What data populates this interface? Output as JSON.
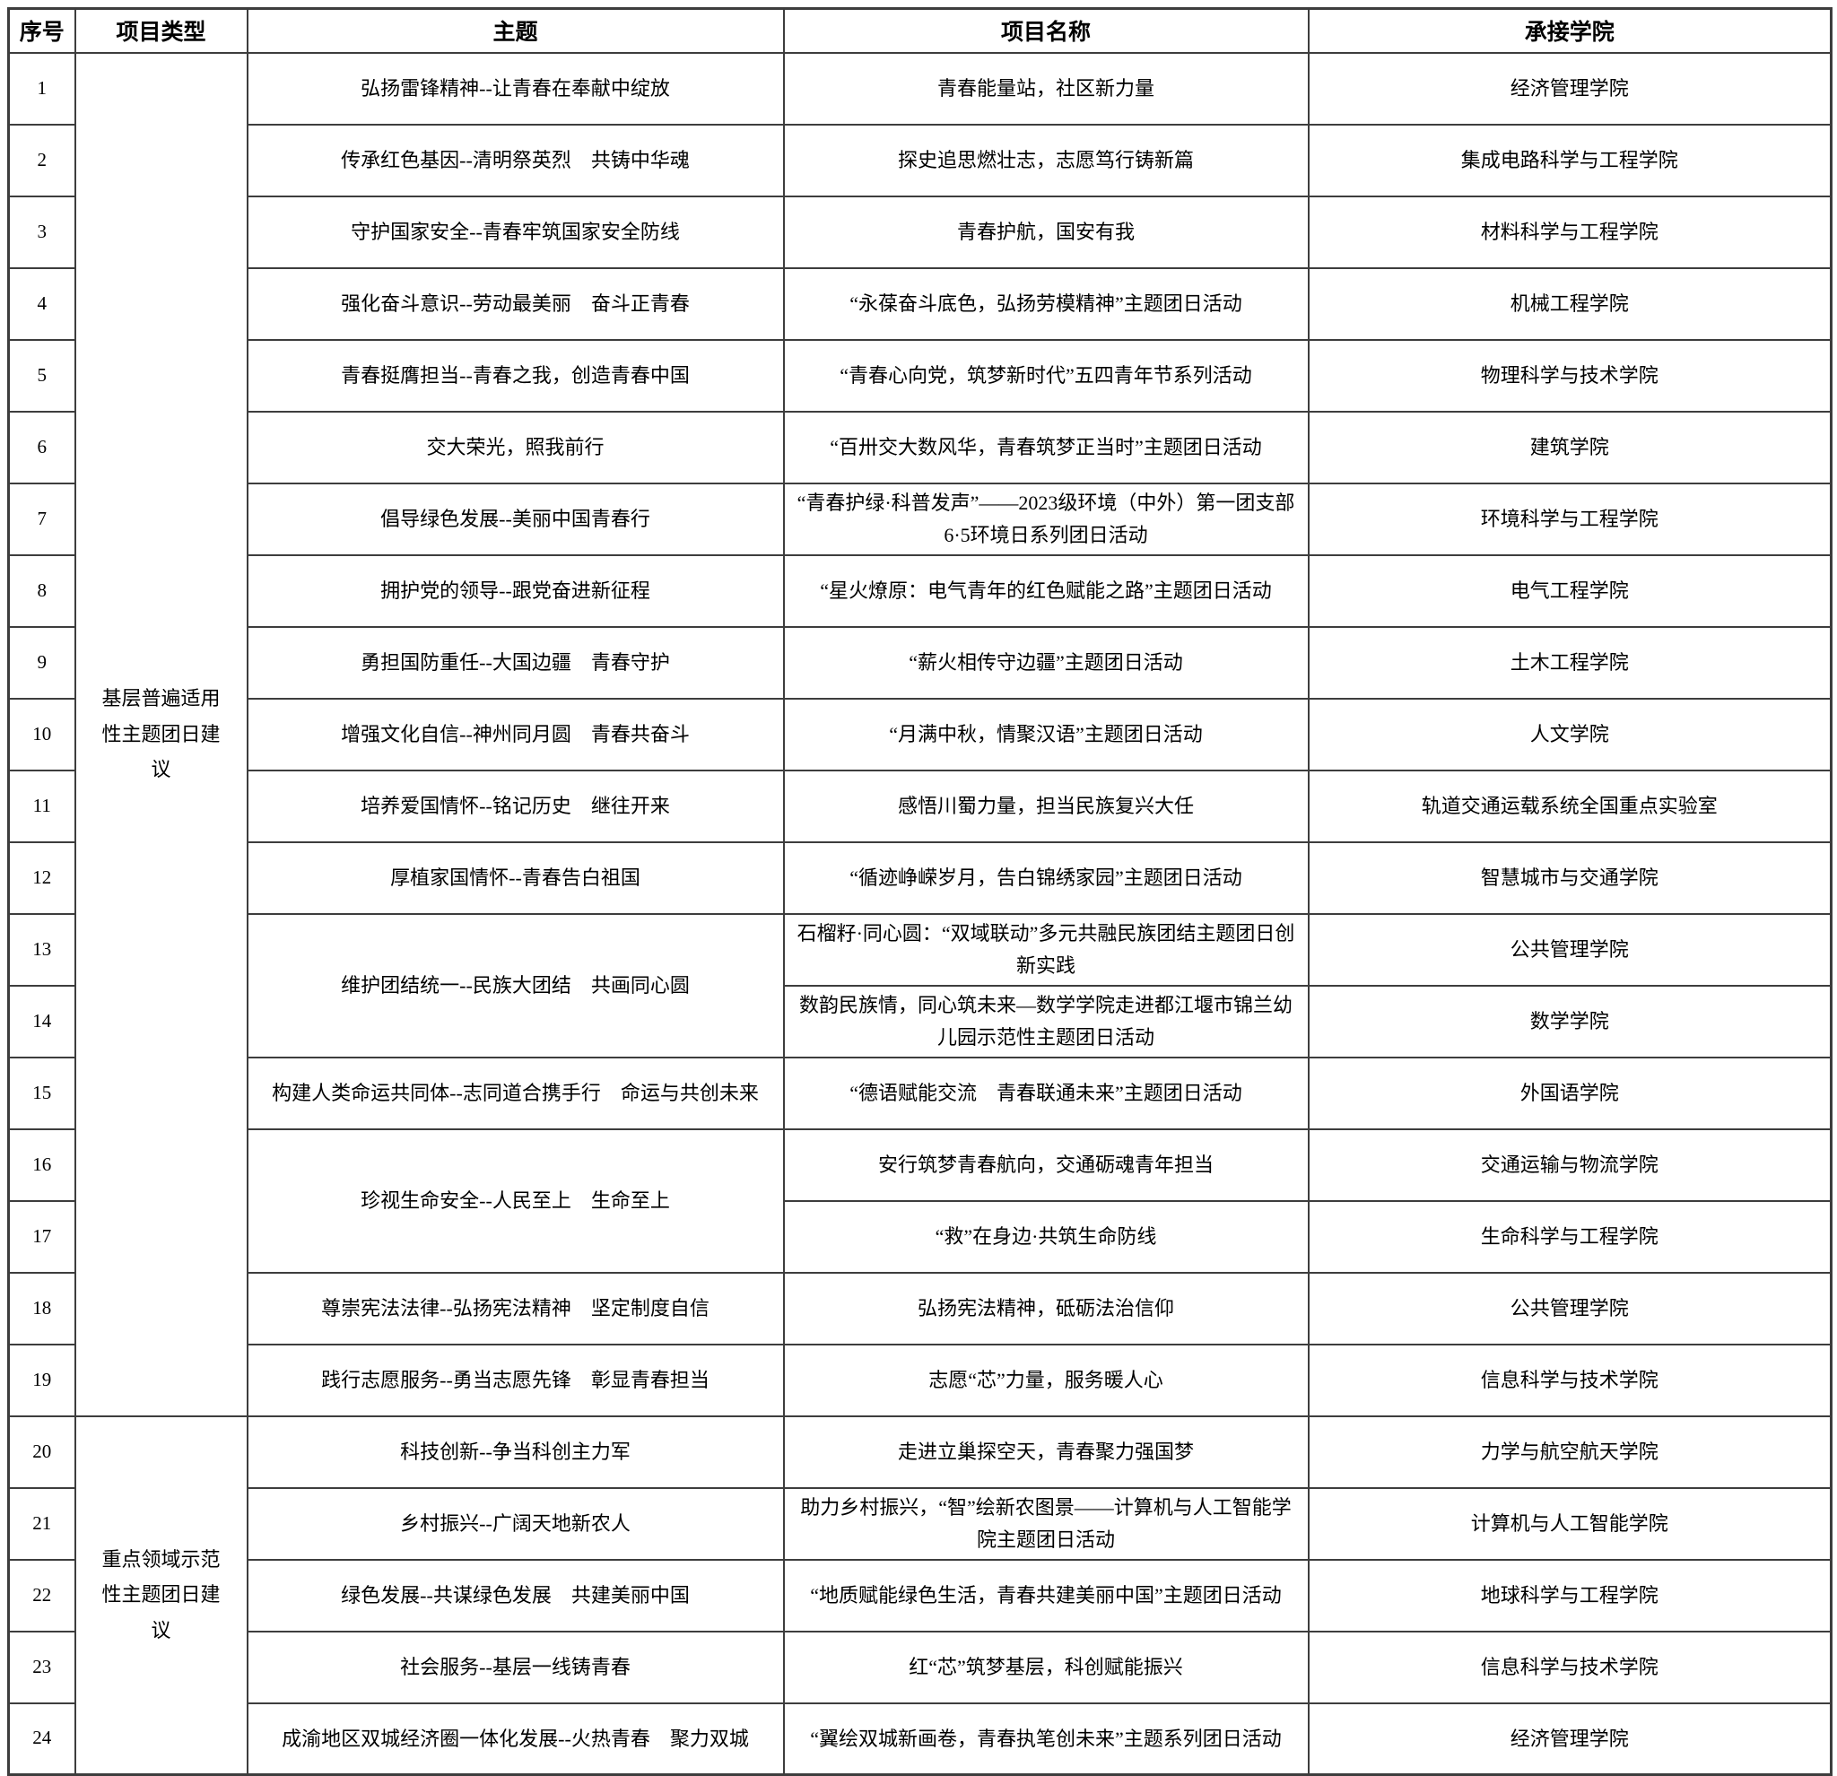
{
  "table": {
    "columns": [
      "序号",
      "项目类型",
      "主题",
      "项目名称",
      "承接学院"
    ],
    "groups": [
      {
        "project_type": "基层普遍适用性主题团日建议",
        "rows": [
          {
            "no": "1",
            "theme": "弘扬雷锋精神--让青春在奉献中绽放",
            "name": "青春能量站，社区新力量",
            "college": "经济管理学院"
          },
          {
            "no": "2",
            "theme": "传承红色基因--清明祭英烈　共铸中华魂",
            "name": "探史追思燃壮志，志愿笃行铸新篇",
            "college": "集成电路科学与工程学院"
          },
          {
            "no": "3",
            "theme": "守护国家安全--青春牢筑国家安全防线",
            "name": "青春护航，国安有我",
            "college": "材料科学与工程学院"
          },
          {
            "no": "4",
            "theme": "强化奋斗意识--劳动最美丽　奋斗正青春",
            "name": "“永葆奋斗底色，弘扬劳模精神”主题团日活动",
            "college": "机械工程学院"
          },
          {
            "no": "5",
            "theme": "青春挺膺担当--青春之我，创造青春中国",
            "name": "“青春心向党，筑梦新时代”五四青年节系列活动",
            "college": "物理科学与技术学院"
          },
          {
            "no": "6",
            "theme": "交大荣光，照我前行",
            "name": "“百卅交大数风华，青春筑梦正当时”主题团日活动",
            "college": "建筑学院"
          },
          {
            "no": "7",
            "theme": "倡导绿色发展--美丽中国青春行",
            "name": "“青春护绿·科普发声”——2023级环境（中外）第一团支部6·5环境日系列团日活动",
            "college": "环境科学与工程学院"
          },
          {
            "no": "8",
            "theme": "拥护党的领导--跟党奋进新征程",
            "name": "“星火燎原：电气青年的红色赋能之路”主题团日活动",
            "college": "电气工程学院"
          },
          {
            "no": "9",
            "theme": "勇担国防重任--大国边疆　青春守护",
            "name": "“薪火相传守边疆”主题团日活动",
            "college": "土木工程学院"
          },
          {
            "no": "10",
            "theme": "增强文化自信--神州同月圆　青春共奋斗",
            "name": "“月满中秋，情聚汉语”主题团日活动",
            "college": "人文学院"
          },
          {
            "no": "11",
            "theme": "培养爱国情怀--铭记历史　继往开来",
            "name": "感悟川蜀力量，担当民族复兴大任",
            "college": "轨道交通运载系统全国重点实验室"
          },
          {
            "no": "12",
            "theme": "厚植家国情怀--青春告白祖国",
            "name": "“循迹峥嵘岁月，告白锦绣家园”主题团日活动",
            "college": "智慧城市与交通学院"
          },
          {
            "no": "13",
            "theme": "维护团结统一--民族大团结　共画同心圆",
            "theme_span": 2,
            "name": "石榴籽·同心圆：“双域联动”多元共融民族团结主题团日创新实践",
            "college": "公共管理学院"
          },
          {
            "no": "14",
            "theme_merged": true,
            "name": "数韵民族情，同心筑未来—数学学院走进都江堰市锦兰幼儿园示范性主题团日活动",
            "college": "数学学院"
          },
          {
            "no": "15",
            "theme": "构建人类命运共同体--志同道合携手行　命运与共创未来",
            "name": "“德语赋能交流　青春联通未来”主题团日活动",
            "college": "外国语学院"
          },
          {
            "no": "16",
            "theme": "珍视生命安全--人民至上　生命至上",
            "theme_span": 2,
            "name": "安行筑梦青春航向，交通砺魂青年担当",
            "college": "交通运输与物流学院"
          },
          {
            "no": "17",
            "theme_merged": true,
            "name": "“救”在身边·共筑生命防线",
            "college": "生命科学与工程学院"
          },
          {
            "no": "18",
            "theme": "尊崇宪法法律--弘扬宪法精神　坚定制度自信",
            "name": "弘扬宪法精神，砥砺法治信仰",
            "college": "公共管理学院"
          },
          {
            "no": "19",
            "theme": "践行志愿服务--勇当志愿先锋　彰显青春担当",
            "name": "志愿“芯”力量，服务暖人心",
            "college": "信息科学与技术学院"
          }
        ]
      },
      {
        "project_type": "重点领域示范性主题团日建议",
        "rows": [
          {
            "no": "20",
            "theme": "科技创新--争当科创主力军",
            "name": "走进立巢探空天，青春聚力强国梦",
            "college": "力学与航空航天学院"
          },
          {
            "no": "21",
            "theme": "乡村振兴--广阔天地新农人",
            "name": "助力乡村振兴，“智”绘新农图景——计算机与人工智能学院主题团日活动",
            "college": "计算机与人工智能学院"
          },
          {
            "no": "22",
            "theme": "绿色发展--共谋绿色发展　共建美丽中国",
            "name": "“地质赋能绿色生活，青春共建美丽中国”主题团日活动",
            "college": "地球科学与工程学院"
          },
          {
            "no": "23",
            "theme": "社会服务--基层一线铸青春",
            "name": "红“芯”筑梦基层，科创赋能振兴",
            "college": "信息科学与技术学院"
          },
          {
            "no": "24",
            "theme": "成渝地区双城经济圈一体化发展--火热青春　聚力双城",
            "name": "“翼绘双城新画卷，青春执笔创未来”主题系列团日活动",
            "college": "经济管理学院"
          }
        ]
      }
    ]
  }
}
